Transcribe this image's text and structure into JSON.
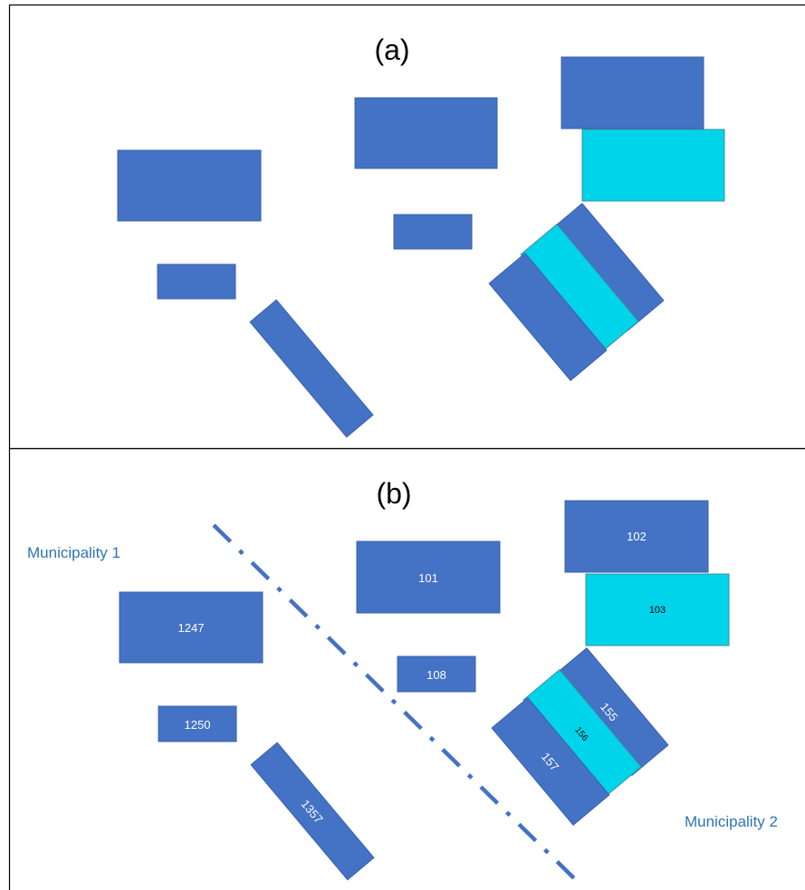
{
  "panel_a": {
    "label": "(a)"
  },
  "panel_b": {
    "label": "(b)",
    "municipality_1": "Municipality 1",
    "municipality_2": "Municipality 2",
    "building_labels": {
      "b101": "101",
      "b102": "102",
      "b103": "103",
      "b108": "108",
      "b155": "155",
      "b156": "156",
      "b157": "157",
      "b1247": "1247",
      "b1250": "1250",
      "b1357": "1357"
    }
  },
  "colors": {
    "building": "#4472c4",
    "building_highlight": "#00d4ea",
    "boundary_line": "#4472c4",
    "municipality_text": "#2e75b6",
    "panel_border": "#000000"
  }
}
